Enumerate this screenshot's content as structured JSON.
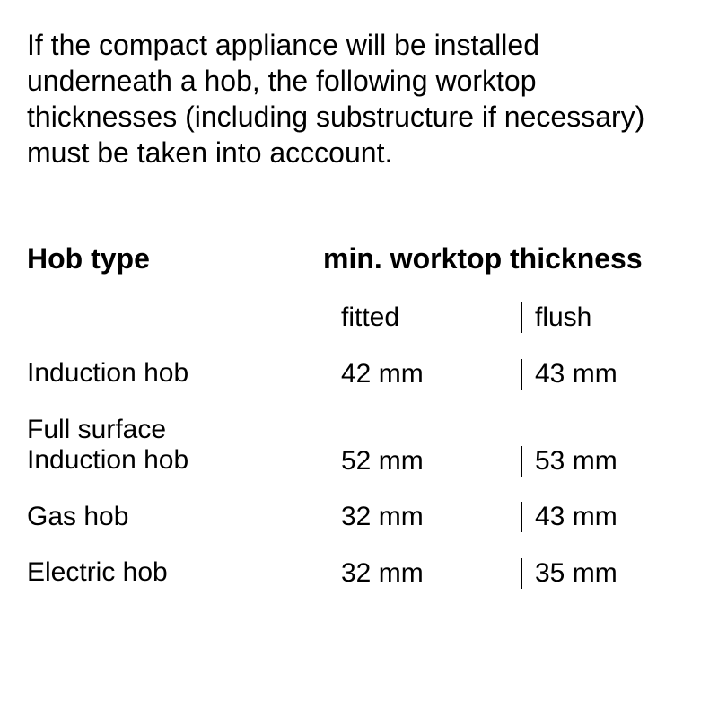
{
  "intro_text": "If the compact appliance will be installed underneath a hob, the following worktop thicknesses (including substructure if necessary) must be taken into acccount.",
  "table": {
    "headers": {
      "hob_type": "Hob type",
      "thickness": "min. worktop thickness"
    },
    "subheaders": {
      "fitted": "fitted",
      "flush": "flush"
    },
    "rows": [
      {
        "label": "Induction hob",
        "fitted": "42 mm",
        "flush": "43 mm"
      },
      {
        "label": "Full surface\nInduction hob",
        "fitted": "52 mm",
        "flush": "53 mm"
      },
      {
        "label": "Gas hob",
        "fitted": "32 mm",
        "flush": "43 mm"
      },
      {
        "label": "Electric hob",
        "fitted": "32 mm",
        "flush": "35 mm"
      }
    ]
  },
  "styling": {
    "background_color": "#ffffff",
    "text_color": "#000000",
    "intro_fontsize": 32,
    "header_fontsize": 32,
    "body_fontsize": 30,
    "divider_color": "#000000",
    "divider_width": 2
  }
}
